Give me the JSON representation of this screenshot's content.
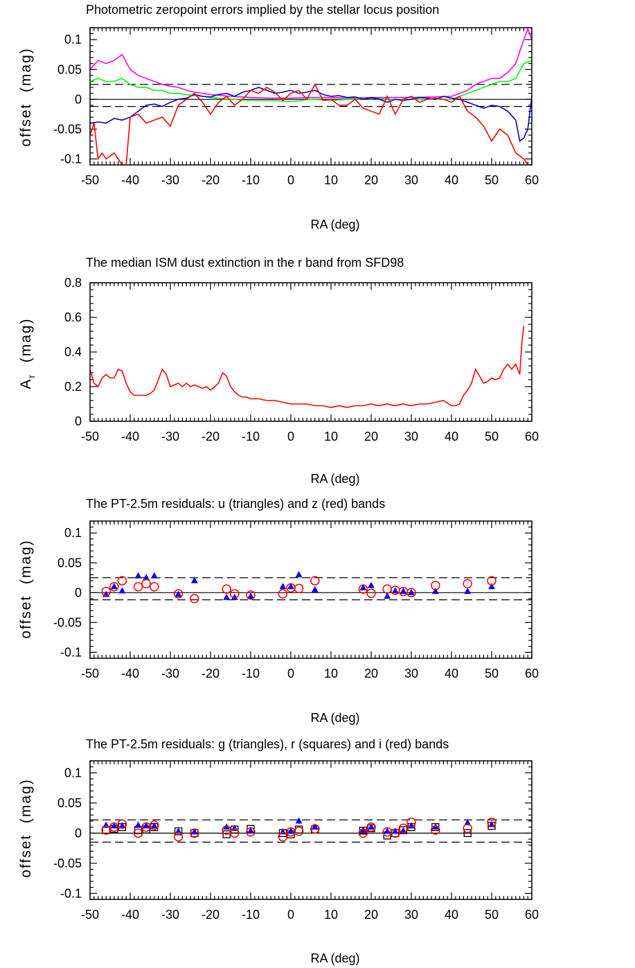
{
  "chart_data": [
    {
      "type": "line",
      "title": "Photometric zeropoint errors implied by the stellar locus position",
      "xlabel": "RA (deg)",
      "ylabel": "offset  (mag)",
      "xlim": [
        -50,
        60
      ],
      "ylim": [
        -0.11,
        0.12
      ],
      "xticks": [
        -50,
        -40,
        -30,
        -20,
        -10,
        0,
        10,
        20,
        30,
        40,
        50,
        60
      ],
      "yticks": [
        -0.1,
        -0.05,
        0,
        0.05,
        0.1
      ],
      "ytick_labels": [
        "-0.1",
        "-0.05",
        "0",
        "0.05",
        "0.1"
      ],
      "hlines": [
        {
          "y": 0,
          "style": "solid"
        },
        {
          "y": 0.025,
          "style": "dashed"
        },
        {
          "y": -0.012,
          "style": "dashed"
        }
      ],
      "series": [
        {
          "color": "#ff00ff",
          "x": [
            -50,
            -48,
            -46,
            -44,
            -42,
            -40,
            -38,
            -36,
            -34,
            -32,
            -30,
            -28,
            -26,
            -24,
            -22,
            -20,
            -15,
            -10,
            -5,
            0,
            5,
            10,
            15,
            20,
            25,
            30,
            35,
            40,
            42,
            44,
            46,
            48,
            50,
            52,
            54,
            56,
            57,
            58,
            59,
            60
          ],
          "values": [
            0.05,
            0.065,
            0.06,
            0.065,
            0.075,
            0.05,
            0.04,
            0.035,
            0.03,
            0.025,
            0.022,
            0.02,
            0.015,
            0.012,
            0.01,
            0.008,
            0.005,
            0.003,
            0.002,
            0.002,
            0.003,
            0.003,
            0.002,
            0.003,
            0.003,
            0.003,
            0.004,
            0.005,
            0.01,
            0.015,
            0.025,
            0.03,
            0.035,
            0.035,
            0.045,
            0.06,
            0.08,
            0.1,
            0.118,
            0.1
          ]
        },
        {
          "color": "#00ff00",
          "x": [
            -50,
            -48,
            -46,
            -44,
            -42,
            -40,
            -38,
            -36,
            -34,
            -32,
            -30,
            -28,
            -26,
            -24,
            -22,
            -20,
            -15,
            -10,
            -5,
            0,
            5,
            10,
            15,
            20,
            25,
            30,
            35,
            40,
            42,
            44,
            46,
            48,
            50,
            52,
            54,
            56,
            58,
            60
          ],
          "values": [
            0.03,
            0.035,
            0.03,
            0.03,
            0.035,
            0.025,
            0.02,
            0.02,
            0.015,
            0.015,
            0.01,
            0.01,
            0.008,
            0.006,
            0.005,
            0.003,
            0.0,
            -0.002,
            -0.002,
            -0.004,
            0.0,
            -0.002,
            0.0,
            0.002,
            0.0,
            0.0,
            0.0,
            0.0,
            0.005,
            0.01,
            0.015,
            0.02,
            0.025,
            0.03,
            0.03,
            0.035,
            0.06,
            0.065
          ]
        },
        {
          "color": "#0000cc",
          "x": [
            -50,
            -48,
            -46,
            -44,
            -42,
            -40,
            -38,
            -36,
            -34,
            -32,
            -30,
            -28,
            -26,
            -24,
            -22,
            -20,
            -18,
            -16,
            -14,
            -12,
            -10,
            -8,
            -6,
            -4,
            -2,
            0,
            2,
            4,
            6,
            8,
            10,
            12,
            14,
            16,
            18,
            20,
            22,
            24,
            26,
            28,
            30,
            32,
            34,
            36,
            38,
            40,
            42,
            44,
            46,
            48,
            50,
            52,
            54,
            56,
            57,
            58,
            59,
            60
          ],
          "values": [
            -0.04,
            -0.038,
            -0.04,
            -0.032,
            -0.035,
            -0.03,
            -0.02,
            -0.01,
            -0.008,
            -0.012,
            -0.005,
            0.0,
            0.002,
            0.008,
            0.005,
            0.004,
            0.008,
            0.01,
            0.005,
            0.012,
            0.015,
            0.02,
            0.015,
            0.01,
            0.012,
            0.015,
            0.01,
            0.012,
            0.015,
            0.008,
            0.005,
            0.006,
            0.003,
            0.004,
            0.0,
            0.003,
            0.0,
            -0.005,
            0.0,
            -0.002,
            0.0,
            0.003,
            0.002,
            0.0,
            0.005,
            0.002,
            0.0,
            -0.005,
            -0.01,
            -0.015,
            -0.01,
            -0.012,
            -0.02,
            -0.035,
            -0.07,
            -0.065,
            -0.05,
            0.005
          ]
        },
        {
          "color": "#ff0000",
          "x": [
            -50,
            -49,
            -48,
            -47,
            -46,
            -44,
            -42,
            -41,
            -40,
            -38,
            -36,
            -34,
            -32,
            -30,
            -28,
            -26,
            -24,
            -22,
            -20,
            -18,
            -16,
            -14,
            -12,
            -10,
            -8,
            -6,
            -4,
            -2,
            0,
            2,
            4,
            6,
            8,
            10,
            12,
            14,
            16,
            18,
            20,
            22,
            24,
            26,
            28,
            30,
            32,
            34,
            36,
            38,
            40,
            42,
            44,
            46,
            48,
            50,
            52,
            54,
            56,
            58,
            59,
            60
          ],
          "values": [
            -0.06,
            -0.04,
            -0.1,
            -0.09,
            -0.1,
            -0.09,
            -0.11,
            -0.11,
            -0.03,
            -0.025,
            -0.04,
            -0.035,
            -0.03,
            -0.045,
            -0.01,
            0.0,
            0.01,
            -0.005,
            -0.025,
            -0.005,
            0.005,
            -0.01,
            0.0,
            0.015,
            0.01,
            0.02,
            0.012,
            -0.002,
            0.01,
            0.015,
            0.0,
            0.025,
            -0.002,
            0.0,
            -0.01,
            -0.01,
            0.0,
            -0.015,
            -0.02,
            -0.025,
            0.005,
            -0.025,
            0.0,
            0.005,
            -0.005,
            0.0,
            0.002,
            0.0,
            -0.005,
            0.005,
            -0.02,
            -0.03,
            -0.045,
            -0.07,
            -0.05,
            -0.06,
            -0.09,
            -0.1,
            -0.11,
            -0.11
          ]
        }
      ]
    },
    {
      "type": "line",
      "title": "The median ISM dust extinction in the r band from SFD98",
      "xlabel": "RA (deg)",
      "ylabel": "A",
      "ylabel_sub": "r",
      "ylabel_suffix": "  (mag)",
      "xlim": [
        -50,
        60
      ],
      "ylim": [
        0,
        0.8
      ],
      "xticks": [
        -50,
        -40,
        -30,
        -20,
        -10,
        0,
        10,
        20,
        30,
        40,
        50,
        60
      ],
      "yticks": [
        0,
        0.2,
        0.4,
        0.6,
        0.8
      ],
      "ytick_labels": [
        "0",
        "0.2",
        "0.4",
        "0.6",
        "0.8"
      ],
      "hlines": [],
      "series": [
        {
          "color": "#ff0000",
          "x": [
            -50,
            -49,
            -48,
            -47,
            -46,
            -45,
            -44,
            -43,
            -42,
            -41,
            -40,
            -39,
            -38,
            -37,
            -36,
            -35,
            -34,
            -33,
            -32,
            -31,
            -30,
            -29,
            -28,
            -27,
            -26,
            -25,
            -24,
            -23,
            -22,
            -21,
            -20,
            -19,
            -18,
            -17,
            -16,
            -15,
            -14,
            -13,
            -12,
            -11,
            -10,
            -8,
            -6,
            -4,
            -2,
            0,
            2,
            4,
            6,
            8,
            10,
            12,
            14,
            16,
            18,
            20,
            22,
            24,
            26,
            28,
            30,
            32,
            34,
            36,
            38,
            40,
            41,
            42,
            43,
            44,
            45,
            46,
            47,
            48,
            49,
            50,
            51,
            52,
            53,
            54,
            55,
            56,
            57,
            57.5,
            58
          ],
          "values": [
            0.3,
            0.22,
            0.2,
            0.25,
            0.27,
            0.25,
            0.25,
            0.3,
            0.29,
            0.22,
            0.17,
            0.15,
            0.15,
            0.15,
            0.15,
            0.16,
            0.18,
            0.24,
            0.3,
            0.27,
            0.2,
            0.21,
            0.22,
            0.2,
            0.22,
            0.2,
            0.21,
            0.2,
            0.19,
            0.2,
            0.18,
            0.2,
            0.22,
            0.28,
            0.26,
            0.2,
            0.17,
            0.15,
            0.14,
            0.14,
            0.13,
            0.13,
            0.12,
            0.12,
            0.11,
            0.1,
            0.1,
            0.1,
            0.09,
            0.09,
            0.08,
            0.09,
            0.08,
            0.09,
            0.09,
            0.1,
            0.09,
            0.1,
            0.09,
            0.1,
            0.09,
            0.1,
            0.1,
            0.11,
            0.12,
            0.09,
            0.09,
            0.1,
            0.15,
            0.18,
            0.22,
            0.3,
            0.26,
            0.22,
            0.23,
            0.25,
            0.24,
            0.25,
            0.3,
            0.33,
            0.3,
            0.33,
            0.27,
            0.45,
            0.55
          ]
        }
      ]
    },
    {
      "type": "scatter",
      "title": "The PT-2.5m residuals: u (triangles) and z (red) bands",
      "xlabel": "RA (deg)",
      "ylabel": "offset  (mag)",
      "xlim": [
        -50,
        60
      ],
      "ylim": [
        -0.11,
        0.12
      ],
      "xticks": [
        -50,
        -40,
        -30,
        -20,
        -10,
        0,
        10,
        20,
        30,
        40,
        50,
        60
      ],
      "yticks": [
        -0.1,
        -0.05,
        0,
        0.05,
        0.1
      ],
      "ytick_labels": [
        "-0.1",
        "-0.05",
        "0",
        "0.05",
        "0.1"
      ],
      "hlines": [
        {
          "y": 0,
          "style": "solid"
        },
        {
          "y": 0.025,
          "style": "dashed"
        },
        {
          "y": -0.012,
          "style": "dashed"
        }
      ],
      "series": [
        {
          "marker": "triangle",
          "color": "#0000ff",
          "x": [
            -46,
            -44,
            -42,
            -38,
            -36,
            -34,
            -28,
            -24,
            -16,
            -14,
            -10,
            -2,
            0,
            2,
            6,
            18,
            20,
            24,
            26,
            28,
            30,
            36,
            44,
            50
          ],
          "values": [
            -0.003,
            0.01,
            0.003,
            0.028,
            0.025,
            0.028,
            -0.003,
            0.02,
            -0.008,
            -0.008,
            -0.006,
            0.01,
            0.01,
            0.03,
            0.005,
            0.008,
            0.012,
            -0.006,
            0.003,
            0.002,
            0.0,
            0.002,
            0.002,
            0.01
          ]
        },
        {
          "marker": "circle",
          "color": "#ff0000",
          "x": [
            -46,
            -44,
            -42,
            -38,
            -36,
            -34,
            -28,
            -24,
            -16,
            -14,
            -10,
            -2,
            0,
            2,
            6,
            18,
            20,
            24,
            26,
            28,
            30,
            36,
            44,
            50
          ],
          "values": [
            0.002,
            0.01,
            0.02,
            0.01,
            0.015,
            0.01,
            -0.002,
            -0.01,
            0.006,
            -0.002,
            -0.004,
            -0.002,
            0.008,
            0.007,
            0.02,
            0.006,
            -0.001,
            0.006,
            0.004,
            0.002,
            0.0,
            0.012,
            0.015,
            0.02
          ]
        }
      ]
    },
    {
      "type": "scatter",
      "title": "The PT-2.5m residuals: g (triangles), r (squares) and i (red) bands",
      "xlabel": "RA (deg)",
      "ylabel": "offset  (mag)",
      "xlim": [
        -50,
        60
      ],
      "ylim": [
        -0.11,
        0.12
      ],
      "xticks": [
        -50,
        -40,
        -30,
        -20,
        -10,
        0,
        10,
        20,
        30,
        40,
        50,
        60
      ],
      "yticks": [
        -0.1,
        -0.05,
        0,
        0.05,
        0.1
      ],
      "ytick_labels": [
        "-0.1",
        "-0.05",
        "0",
        "0.05",
        "0.1"
      ],
      "hlines": [
        {
          "y": 0,
          "style": "solid"
        },
        {
          "y": 0.022,
          "style": "dashed"
        },
        {
          "y": -0.015,
          "style": "dashed"
        }
      ],
      "series": [
        {
          "marker": "square",
          "color": "#000000",
          "x": [
            -46,
            -44,
            -42,
            -38,
            -36,
            -34,
            -28,
            -24,
            -16,
            -14,
            -10,
            -2,
            0,
            2,
            6,
            18,
            20,
            24,
            26,
            28,
            30,
            36,
            44,
            50
          ],
          "values": [
            0.005,
            0.007,
            0.01,
            0.005,
            0.006,
            0.01,
            0.003,
            0.0,
            -0.002,
            0.006,
            0.007,
            0.0,
            -0.002,
            0.006,
            0.006,
            0.004,
            0.008,
            -0.004,
            0.0,
            0.005,
            0.01,
            0.01,
            0.0,
            0.012
          ]
        },
        {
          "marker": "triangle",
          "color": "#0000ff",
          "x": [
            -46,
            -44,
            -42,
            -38,
            -36,
            -34,
            -28,
            -24,
            -16,
            -14,
            -10,
            -2,
            0,
            2,
            6,
            18,
            20,
            24,
            26,
            28,
            30,
            36,
            44,
            50
          ],
          "values": [
            0.013,
            0.012,
            0.012,
            0.013,
            0.012,
            0.012,
            0.003,
            0.002,
            0.01,
            0.008,
            0.004,
            0.002,
            0.003,
            0.02,
            0.01,
            0.005,
            0.01,
            0.003,
            0.003,
            0.004,
            0.012,
            0.01,
            0.017,
            0.014
          ]
        },
        {
          "marker": "circle",
          "color": "#ff0000",
          "x": [
            -46,
            -44,
            -42,
            -38,
            -36,
            -34,
            -28,
            -24,
            -16,
            -14,
            -10,
            -2,
            0,
            2,
            6,
            18,
            20,
            24,
            26,
            28,
            30,
            36,
            44,
            50
          ],
          "values": [
            0.005,
            0.01,
            0.015,
            0.0,
            0.01,
            0.013,
            -0.006,
            0.0,
            0.005,
            0.0,
            0.002,
            -0.006,
            0.002,
            0.003,
            0.007,
            0.0,
            0.01,
            0.002,
            0.0,
            0.008,
            0.018,
            0.005,
            0.008,
            0.018
          ]
        }
      ]
    }
  ]
}
